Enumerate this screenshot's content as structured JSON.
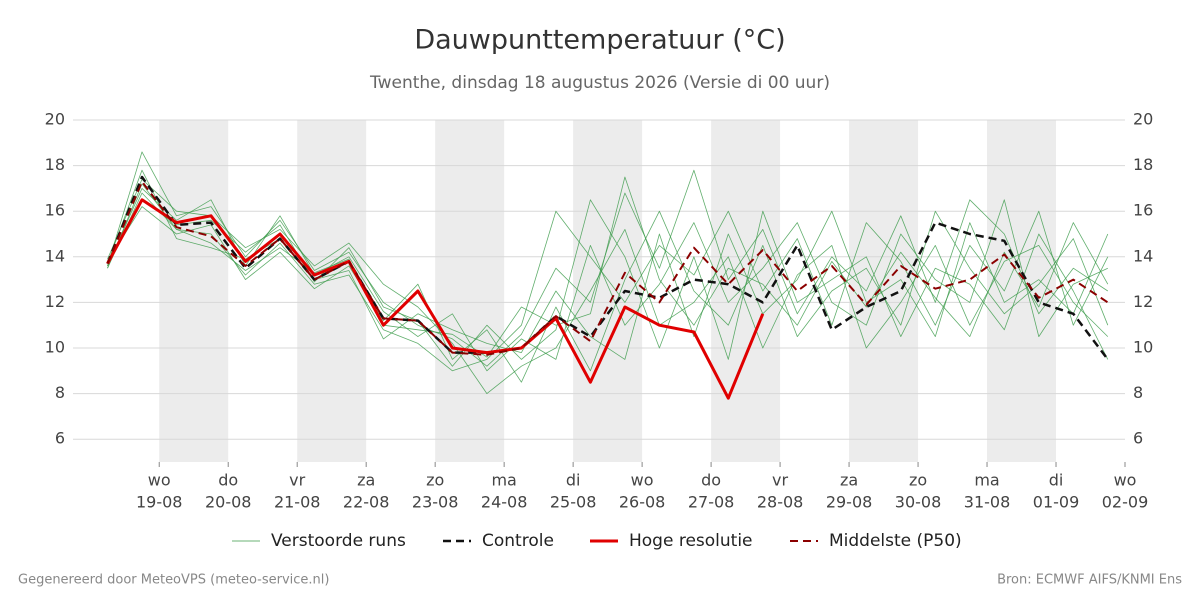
{
  "chart_data": {
    "type": "line",
    "title": "Dauwpunttemperatuur (°C)",
    "subtitle": "Twenthe, dinsdag 18 augustus 2026 (Versie di 00 uur)",
    "footer_left": "Gegenereerd door MeteoVPS (meteo-service.nl)",
    "footer_right": "Bron: ECMWF AIFS/KNMI Ens",
    "x": [
      0.25,
      0.75,
      1.25,
      1.75,
      2.25,
      2.75,
      3.25,
      3.75,
      4.25,
      4.75,
      5.25,
      5.75,
      6.25,
      6.75,
      7.25,
      7.75,
      8.25,
      8.75,
      9.25,
      9.75,
      10.25,
      10.75,
      11.25,
      11.75,
      12.25,
      12.75,
      13.25,
      13.75,
      14.25,
      14.75
    ],
    "xlim": [
      -0.25,
      15
    ],
    "xticks": [
      {
        "value": 1,
        "label": [
          "wo",
          "19-08"
        ]
      },
      {
        "value": 2,
        "label": [
          "do",
          "20-08"
        ]
      },
      {
        "value": 3,
        "label": [
          "vr",
          "21-08"
        ]
      },
      {
        "value": 4,
        "label": [
          "za",
          "22-08"
        ]
      },
      {
        "value": 5,
        "label": [
          "zo",
          "23-08"
        ]
      },
      {
        "value": 6,
        "label": [
          "ma",
          "24-08"
        ]
      },
      {
        "value": 7,
        "label": [
          "di",
          "25-08"
        ]
      },
      {
        "value": 8,
        "label": [
          "wo",
          "26-08"
        ]
      },
      {
        "value": 9,
        "label": [
          "do",
          "27-08"
        ]
      },
      {
        "value": 10,
        "label": [
          "vr",
          "28-08"
        ]
      },
      {
        "value": 11,
        "label": [
          "za",
          "29-08"
        ]
      },
      {
        "value": 12,
        "label": [
          "zo",
          "30-08"
        ]
      },
      {
        "value": 13,
        "label": [
          "ma",
          "31-08"
        ]
      },
      {
        "value": 14,
        "label": [
          "di",
          "01-09"
        ]
      },
      {
        "value": 15,
        "label": [
          "wo",
          "02-09"
        ]
      }
    ],
    "ylim": [
      5,
      20
    ],
    "yticks": [
      6,
      8,
      10,
      12,
      14,
      16,
      18,
      20
    ],
    "grid": true,
    "legend": "bottom",
    "series": [
      {
        "name": "Verstoorde runs",
        "color": "#3a9a48",
        "style": "solid",
        "runs": [
          [
            13.6,
            18.6,
            15.8,
            16.2,
            14.0,
            15.6,
            13.4,
            14.2,
            12.0,
            11.0,
            10.4,
            9.2,
            10.6,
            13.5,
            12.0,
            16.8,
            13.5,
            17.8,
            13.0,
            15.2,
            11.5,
            14.0,
            12.5,
            15.8,
            12.0,
            16.5,
            15.0,
            11.5,
            13.5,
            12.5
          ],
          [
            13.5,
            16.8,
            15.2,
            15.0,
            13.2,
            14.6,
            12.8,
            13.2,
            10.8,
            10.2,
            9.0,
            9.5,
            11.0,
            16.0,
            14.0,
            12.0,
            14.5,
            13.2,
            16.0,
            12.5,
            14.8,
            11.0,
            15.5,
            13.8,
            11.0,
            14.5,
            12.5,
            16.0,
            11.0,
            14.0
          ],
          [
            13.9,
            17.4,
            16.0,
            15.8,
            14.4,
            15.2,
            13.6,
            14.6,
            12.8,
            11.8,
            10.2,
            8.0,
            9.2,
            10.0,
            12.5,
            15.2,
            11.0,
            12.0,
            14.0,
            10.0,
            13.2,
            14.5,
            10.0,
            12.0,
            14.5,
            11.0,
            13.8,
            14.5,
            12.0,
            10.5
          ],
          [
            13.8,
            16.2,
            15.0,
            15.4,
            13.0,
            14.2,
            12.6,
            13.6,
            11.2,
            12.8,
            9.5,
            10.8,
            8.5,
            11.8,
            9.0,
            13.0,
            16.0,
            12.5,
            11.0,
            14.5,
            10.5,
            12.5,
            13.5,
            11.0,
            16.0,
            13.5,
            11.5,
            12.8,
            14.8,
            11.0
          ],
          [
            13.6,
            17.0,
            15.6,
            16.5,
            13.6,
            15.8,
            13.2,
            14.0,
            11.6,
            10.5,
            11.5,
            9.0,
            10.4,
            9.5,
            14.5,
            11.0,
            12.8,
            15.5,
            12.0,
            13.5,
            15.5,
            12.0,
            11.0,
            15.0,
            13.0,
            12.0,
            16.5,
            10.5,
            12.8,
            13.5
          ],
          [
            13.7,
            17.8,
            14.8,
            14.4,
            13.9,
            14.8,
            13.0,
            13.4,
            10.4,
            11.5,
            10.8,
            10.2,
            9.8,
            12.5,
            10.5,
            9.5,
            15.0,
            10.5,
            15.0,
            11.5,
            13.0,
            16.0,
            12.0,
            13.0,
            10.5,
            15.5,
            12.0,
            13.0,
            11.5,
            15.0
          ],
          [
            13.8,
            16.5,
            15.4,
            15.6,
            14.2,
            15.4,
            12.9,
            14.4,
            11.8,
            11.2,
            9.2,
            11.0,
            9.5,
            10.8,
            16.5,
            14.0,
            10.0,
            14.0,
            9.5,
            16.0,
            12.0,
            13.0,
            14.0,
            10.5,
            13.5,
            12.8,
            10.8,
            15.0,
            12.5,
            9.5
          ],
          [
            13.5,
            17.2,
            15.2,
            14.6,
            13.4,
            14.4,
            13.3,
            13.9,
            11.0,
            10.8,
            10.6,
            9.6,
            11.8,
            11.0,
            11.5,
            17.5,
            13.0,
            11.0,
            13.5,
            12.8,
            11.0,
            13.8,
            11.8,
            14.2,
            12.2,
            10.5,
            14.2,
            11.8,
            15.5,
            12.8
          ]
        ]
      },
      {
        "name": "Controle",
        "color": "#111111",
        "style": "dashed",
        "values": [
          13.7,
          17.5,
          15.4,
          15.5,
          13.5,
          14.8,
          13.0,
          13.8,
          11.3,
          11.2,
          9.8,
          9.8,
          10.0,
          11.4,
          10.5,
          12.5,
          12.2,
          13.0,
          12.8,
          12.0,
          14.5,
          10.8,
          11.8,
          12.5,
          15.5,
          15.0,
          14.7,
          12.0,
          11.5,
          9.5
        ]
      },
      {
        "name": "Hoge resolutie",
        "color": "#e00000",
        "style": "solid",
        "values": [
          13.7,
          16.5,
          15.5,
          15.8,
          13.8,
          15.0,
          13.2,
          13.8,
          11.0,
          12.5,
          10.0,
          9.8,
          10.0,
          11.3,
          8.5,
          11.8,
          11.0,
          10.7,
          7.8,
          11.5,
          null,
          null,
          null,
          null,
          null,
          null,
          null,
          null,
          null,
          null
        ]
      },
      {
        "name": "Middelste (P50)",
        "color": "#8b0000",
        "style": "dashed",
        "values": [
          13.7,
          17.3,
          15.3,
          14.9,
          13.6,
          14.8,
          13.0,
          13.8,
          11.3,
          11.2,
          9.8,
          9.7,
          10.0,
          11.4,
          10.3,
          13.3,
          12.0,
          14.4,
          12.8,
          14.3,
          12.5,
          13.6,
          11.9,
          13.6,
          12.6,
          13.0,
          14.1,
          12.2,
          13.0,
          12.0
        ]
      }
    ]
  }
}
